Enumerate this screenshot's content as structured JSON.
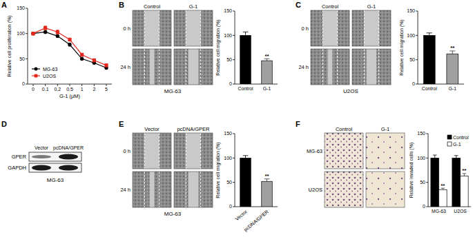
{
  "chart_data": [
    {
      "type": "line",
      "ylabel": "Relative cell proliferation (%)",
      "xlabel": "G-1 (μM)",
      "categories": [
        "0",
        "0.1",
        "0.2",
        "0.5",
        "1",
        "2",
        "5"
      ],
      "ylim": [
        0,
        150
      ],
      "yticks": [
        0,
        50,
        100,
        150
      ],
      "legend": "lower left",
      "series": [
        {
          "name": "MG-63",
          "color": "#000000",
          "marker": "circle",
          "values": [
            100,
            103,
            95,
            78,
            50,
            42,
            32
          ],
          "errors": [
            2,
            3,
            3,
            3,
            3,
            2,
            2
          ]
        },
        {
          "name": "U2OS",
          "color": "#e3281e",
          "marker": "square",
          "values": [
            100,
            111,
            103,
            88,
            58,
            47,
            37
          ],
          "errors": [
            3,
            4,
            4,
            3,
            3,
            3,
            3
          ]
        }
      ]
    },
    {
      "type": "bar",
      "ylabel": "Relative cell migration (%)",
      "categories": [
        "Control",
        "G-1"
      ],
      "values": [
        100,
        48
      ],
      "errors": [
        7,
        4
      ],
      "colors": [
        "#000000",
        "#a0a0a0"
      ],
      "annotations": [
        null,
        "**"
      ],
      "ylim": [
        0,
        150
      ],
      "yticks": [
        0,
        50,
        100,
        150
      ]
    },
    {
      "type": "bar",
      "ylabel": "Relative cell migration (%)",
      "categories": [
        "Control",
        "G-1"
      ],
      "values": [
        100,
        62
      ],
      "errors": [
        5,
        6
      ],
      "colors": [
        "#000000",
        "#a0a0a0"
      ],
      "annotations": [
        null,
        "**"
      ],
      "ylim": [
        0,
        150
      ],
      "yticks": [
        0,
        50,
        100,
        150
      ]
    },
    {
      "type": "bar",
      "ylabel": "Relative cell migration (%)",
      "categories": [
        "Vector",
        "pcDNA/GPER"
      ],
      "values": [
        100,
        52
      ],
      "errors": [
        5,
        5
      ],
      "colors": [
        "#000000",
        "#a0a0a0"
      ],
      "annotations": [
        null,
        "**"
      ],
      "ylim": [
        0,
        150
      ],
      "yticks": [
        0,
        50,
        100,
        150
      ]
    },
    {
      "type": "bar",
      "ylabel": "Relative invaded cells (%)",
      "categories": [
        "MG-63",
        "U2OS"
      ],
      "legend": "upper right",
      "ylim": [
        0,
        150
      ],
      "yticks": [
        0,
        50,
        100,
        150
      ],
      "series": [
        {
          "name": "Control",
          "color": "#000000",
          "values": [
            100,
            100
          ],
          "errors": [
            6,
            5
          ]
        },
        {
          "name": "G-1",
          "color": "#ffffff",
          "values": [
            35,
            63
          ],
          "errors": [
            3,
            5
          ],
          "annotations": [
            "**",
            "**"
          ]
        }
      ]
    }
  ],
  "panels": {
    "labels": [
      "A",
      "B",
      "C",
      "D",
      "E",
      "F"
    ],
    "B": {
      "columns": [
        "Control",
        "G-1"
      ],
      "rows": [
        "0 h",
        "24 h"
      ],
      "caption": "MG-63"
    },
    "C": {
      "columns": [
        "Control",
        "G-1"
      ],
      "rows": [
        "0 h",
        "24 h"
      ],
      "caption": "U2OS"
    },
    "D": {
      "columns": [
        "Vector",
        "pcDNA/GPER"
      ],
      "rows": [
        "GPER",
        "GAPDH"
      ],
      "caption": "MG-63"
    },
    "E": {
      "columns": [
        "Vector",
        "pcDNA/GPER"
      ],
      "rows": [
        "0 h",
        "24 h"
      ],
      "caption": "MG-63"
    },
    "F": {
      "columns": [
        "Control",
        "G-1"
      ],
      "rows": [
        "MG-63",
        "U2OS"
      ]
    }
  }
}
